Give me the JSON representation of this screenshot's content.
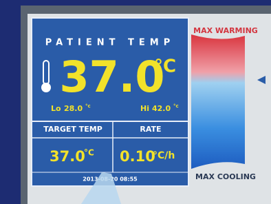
{
  "header": {
    "title": "PATIENT TEMP"
  },
  "patient": {
    "temp": "37.0",
    "unit": "°C",
    "lo_label": "Lo",
    "lo_value": "28.0",
    "lo_unit": "°c",
    "hi_label": "Hi",
    "hi_value": "42.0",
    "hi_unit": "°c"
  },
  "table": {
    "headers": [
      "TARGET TEMP",
      "RATE"
    ],
    "values": [
      "37.0",
      "0.10"
    ],
    "units": [
      "°C",
      "°C/h"
    ]
  },
  "timestamp": "2013-08-20 08:55",
  "gauge": {
    "top_label": "MAX WARMING",
    "bottom_label": "MAX COOLING"
  }
}
